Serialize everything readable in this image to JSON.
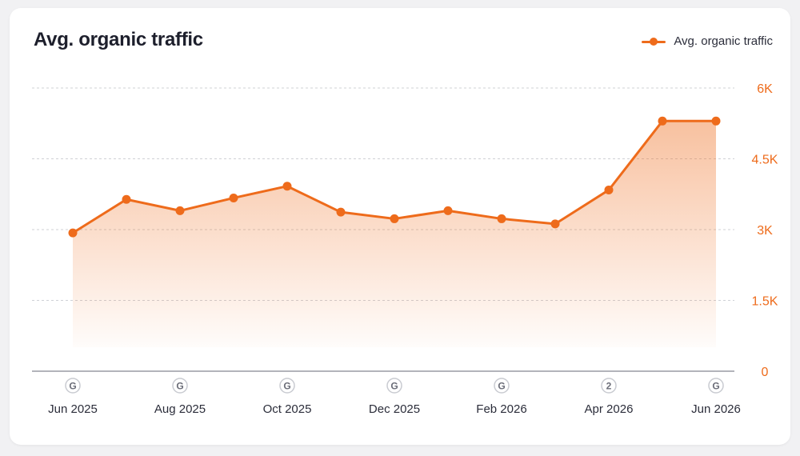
{
  "card": {
    "title": "Avg. organic traffic"
  },
  "legend": {
    "label": "Avg. organic traffic"
  },
  "colors": {
    "accent": "#ee6b1b",
    "grid": "#cfd1d6",
    "baseline": "#9a9ca3",
    "text": "#2b2d3a"
  },
  "chart_data": {
    "type": "area",
    "title": "Avg. organic traffic",
    "xlabel": "",
    "ylabel": "",
    "ylim": [
      0,
      6000
    ],
    "yticks": [
      {
        "value": 0,
        "label": "0"
      },
      {
        "value": 1500,
        "label": "1.5K"
      },
      {
        "value": 3000,
        "label": "3K"
      },
      {
        "value": 4500,
        "label": "4.5K"
      },
      {
        "value": 6000,
        "label": "6K"
      }
    ],
    "grid": true,
    "legend_position": "top-right",
    "x": [
      "Jun 2025",
      "Jul 2025",
      "Aug 2025",
      "Sep 2025",
      "Oct 2025",
      "Nov 2025",
      "Dec 2025",
      "Jan 2026",
      "Feb 2026",
      "Mar 2026",
      "Apr 2026",
      "May 2026",
      "Jun 2026"
    ],
    "series": [
      {
        "name": "Avg. organic traffic",
        "values": [
          2930,
          3640,
          3400,
          3670,
          3920,
          3370,
          3230,
          3400,
          3230,
          3120,
          3840,
          5300,
          5300
        ]
      }
    ],
    "x_tick_labels": [
      {
        "index": 0,
        "label": "Jun 2025"
      },
      {
        "index": 2,
        "label": "Aug 2025"
      },
      {
        "index": 4,
        "label": "Oct 2025"
      },
      {
        "index": 6,
        "label": "Dec 2025"
      },
      {
        "index": 8,
        "label": "Feb 2026"
      },
      {
        "index": 10,
        "label": "Apr 2026"
      },
      {
        "index": 12,
        "label": "Jun 2026"
      }
    ],
    "annotations": [
      {
        "index": 0,
        "text": "G",
        "icon": "google-update-icon"
      },
      {
        "index": 2,
        "text": "G",
        "icon": "google-update-icon"
      },
      {
        "index": 4,
        "text": "G",
        "icon": "google-update-icon"
      },
      {
        "index": 6,
        "text": "G",
        "icon": "google-update-icon"
      },
      {
        "index": 8,
        "text": "G",
        "icon": "google-update-icon"
      },
      {
        "index": 10,
        "text": "2",
        "icon": "update-count-badge"
      },
      {
        "index": 12,
        "text": "G",
        "icon": "google-update-icon"
      }
    ]
  }
}
